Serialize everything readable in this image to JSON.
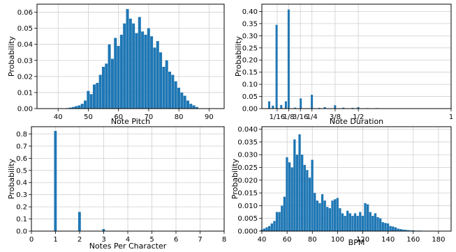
{
  "chart_data": [
    {
      "type": "bar",
      "xlabel": "Note Pitch",
      "ylabel": "Probability",
      "xlim": [
        33,
        95
      ],
      "ylim": [
        0,
        0.065
      ],
      "xticks": [
        40,
        50,
        60,
        70,
        80,
        90
      ],
      "yticks": [
        0,
        0.01,
        0.02,
        0.03,
        0.04,
        0.05,
        0.06
      ],
      "ytick_labels": [
        "0.00",
        "0.01",
        "0.02",
        "0.03",
        "0.04",
        "0.05",
        "0.06"
      ],
      "grid": true,
      "bin_width": 1,
      "x": [
        43,
        44,
        45,
        46,
        47,
        48,
        49,
        50,
        51,
        52,
        53,
        54,
        55,
        56,
        57,
        58,
        59,
        60,
        61,
        62,
        63,
        64,
        65,
        66,
        67,
        68,
        69,
        70,
        71,
        72,
        73,
        74,
        75,
        76,
        77,
        78,
        79,
        80,
        81,
        82,
        83,
        84,
        85,
        86
      ],
      "values": [
        0.0003,
        0.0006,
        0.001,
        0.0015,
        0.002,
        0.003,
        0.005,
        0.011,
        0.009,
        0.015,
        0.016,
        0.021,
        0.026,
        0.028,
        0.04,
        0.031,
        0.044,
        0.039,
        0.046,
        0.053,
        0.062,
        0.056,
        0.053,
        0.047,
        0.057,
        0.048,
        0.046,
        0.05,
        0.045,
        0.038,
        0.042,
        0.035,
        0.026,
        0.03,
        0.023,
        0.021,
        0.017,
        0.013,
        0.01,
        0.008,
        0.005,
        0.003,
        0.002,
        0.001
      ]
    },
    {
      "type": "bar",
      "xlabel": "Note Duration",
      "ylabel": "Probability",
      "xlim": [
        -0.02,
        1.0
      ],
      "ylim": [
        0,
        0.43
      ],
      "xticks": [
        0.0625,
        0.125,
        0.1875,
        0.25,
        0.375,
        0.5,
        1.0
      ],
      "xtick_labels": [
        "1/16",
        "1/8",
        "3/16",
        "1/4",
        "3/8",
        "1/2",
        "1"
      ],
      "yticks": [
        0,
        0.05,
        0.1,
        0.15,
        0.2,
        0.25,
        0.3,
        0.35,
        0.4
      ],
      "ytick_labels": [
        "0.00",
        "0.05",
        "0.10",
        "0.15",
        "0.20",
        "0.25",
        "0.30",
        "0.35",
        "0.40"
      ],
      "grid": true,
      "bin_width": 0.0125,
      "x": [
        0.02,
        0.04,
        0.06,
        0.085,
        0.11,
        0.125,
        0.16,
        0.19,
        0.25,
        0.29,
        0.32,
        0.375,
        0.42,
        0.47,
        0.5,
        0.55,
        0.6,
        0.65,
        0.7,
        0.75,
        0.8,
        0.85,
        0.9,
        0.95,
        1.0
      ],
      "values": [
        0.03,
        0.012,
        0.345,
        0.015,
        0.03,
        0.408,
        0.004,
        0.042,
        0.057,
        0.003,
        0.006,
        0.014,
        0.004,
        0.003,
        0.006,
        0.002,
        0.002,
        0.001,
        0.001,
        0.001,
        0.001,
        0.001,
        0.001,
        0.001,
        0.001
      ]
    },
    {
      "type": "bar",
      "xlabel": "Notes Per Character",
      "ylabel": "Probability",
      "xlim": [
        0,
        8
      ],
      "ylim": [
        0,
        0.86
      ],
      "xticks": [
        0,
        1,
        2,
        3,
        4,
        5,
        6,
        7,
        8
      ],
      "yticks": [
        0,
        0.1,
        0.2,
        0.3,
        0.4,
        0.5,
        0.6,
        0.7,
        0.8
      ],
      "ytick_labels": [
        "0.0",
        "0.1",
        "0.2",
        "0.3",
        "0.4",
        "0.5",
        "0.6",
        "0.7",
        "0.8"
      ],
      "grid": true,
      "bin_width": 0.12,
      "x": [
        1,
        2,
        3
      ],
      "values": [
        0.825,
        0.158,
        0.017
      ]
    },
    {
      "type": "bar",
      "xlabel": "BPM",
      "ylabel": "Probability",
      "xlim": [
        40,
        190
      ],
      "ylim": [
        0,
        0.041
      ],
      "xticks": [
        40,
        60,
        80,
        100,
        120,
        140,
        160,
        180
      ],
      "yticks": [
        0,
        0.005,
        0.01,
        0.015,
        0.02,
        0.025,
        0.03,
        0.035,
        0.04
      ],
      "ytick_labels": [
        "0.000",
        "0.005",
        "0.010",
        "0.015",
        "0.020",
        "0.025",
        "0.030",
        "0.035",
        "0.040"
      ],
      "grid": true,
      "bin_width": 2,
      "x": [
        40,
        42,
        44,
        46,
        48,
        50,
        52,
        54,
        56,
        58,
        60,
        62,
        64,
        66,
        68,
        70,
        72,
        74,
        76,
        78,
        80,
        82,
        84,
        86,
        88,
        90,
        92,
        94,
        96,
        98,
        100,
        102,
        104,
        106,
        108,
        110,
        112,
        114,
        116,
        118,
        120,
        122,
        124,
        126,
        128,
        130,
        132,
        134,
        136,
        138,
        140,
        142,
        144,
        146,
        148,
        150,
        152,
        154,
        156,
        158,
        160,
        162,
        164,
        166,
        168,
        170,
        172,
        174,
        176,
        178,
        180,
        182,
        184,
        186,
        188
      ],
      "values": [
        0.0005,
        0.001,
        0.0015,
        0.002,
        0.003,
        0.004,
        0.0075,
        0.0075,
        0.01,
        0.0135,
        0.029,
        0.027,
        0.025,
        0.036,
        0.03,
        0.038,
        0.03,
        0.026,
        0.024,
        0.021,
        0.028,
        0.015,
        0.012,
        0.011,
        0.0145,
        0.012,
        0.0095,
        0.009,
        0.012,
        0.0125,
        0.013,
        0.009,
        0.007,
        0.006,
        0.008,
        0.007,
        0.006,
        0.007,
        0.006,
        0.0075,
        0.006,
        0.011,
        0.0105,
        0.0075,
        0.006,
        0.007,
        0.0055,
        0.005,
        0.0035,
        0.0032,
        0.003,
        0.002,
        0.0018,
        0.0015,
        0.001,
        0.0008,
        0.0006,
        0.0005,
        0.0004,
        0.0003,
        0.0003,
        0.0002,
        0.0002,
        0.0002,
        0.0001,
        0.0001,
        0.0001,
        0.0001,
        0.0001,
        0.0001,
        0.0001,
        0.0001,
        0.0001,
        0.0001,
        0.0001
      ]
    }
  ]
}
